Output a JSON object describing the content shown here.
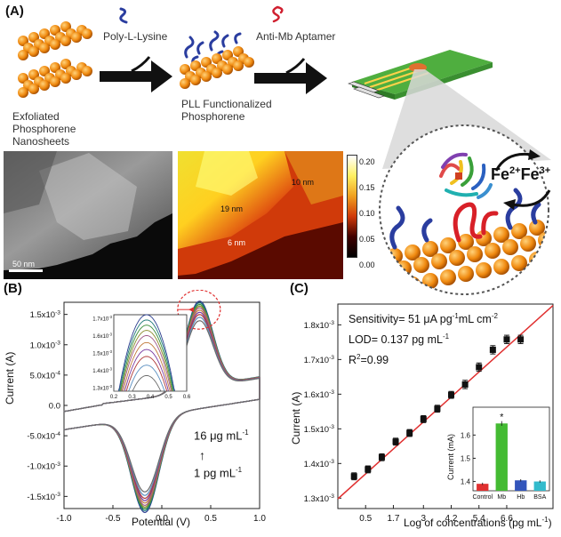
{
  "panelA": {
    "label": "(A)",
    "step1_label": "Poly-L-Lysine",
    "step2_label": "Anti-Mb Aptamer",
    "nanosheet_caption": [
      "Exfoliated",
      "Phosphorene",
      "Nanosheets"
    ],
    "pll_caption": [
      "PLL Functionalized",
      "Phosphorene"
    ],
    "sem_scale": "50 nm",
    "afm_heights": [
      "10 nm",
      "19 nm",
      "6 nm"
    ],
    "afm_colorbar_ticks": [
      "0.20",
      "0.15",
      "0.10",
      "0.05",
      "0.00"
    ],
    "redox_fe2": "Fe",
    "redox_fe2_sup": "2+",
    "redox_fe3_sup": "3+"
  },
  "panelB": {
    "label": "(B)",
    "ylabel": "Current (A)",
    "xlabel": "Potential (V)",
    "annot_high_a": "16 μg mL",
    "annot_high_sup": "-1",
    "annot_low_a": "1 pg mL",
    "annot_low_sup": "-1"
  },
  "panelC": {
    "label": "(C)",
    "ylabel": "Current (A)",
    "xlabel_a": "Log of concentrations (pg mL",
    "xlabel_sup": "-1",
    "xlabel_b": ")",
    "sens_a": "Sensitivity= 51 μA pg",
    "sens_sup1": "-1",
    "sens_b": "mL cm",
    "sens_sup2": "-2",
    "lod_a": "LOD= 0.137 pg mL",
    "lod_sup": "-1",
    "r2": "R",
    "r2_sup": "2",
    "r2_b": "=0.99",
    "inset_ylabel": "Current (mA)",
    "inset_star": "*"
  },
  "chart_data": [
    {
      "type": "line",
      "panel": "B",
      "xlabel": "Potential (V)",
      "ylabel": "Current (A)",
      "xlim": [
        -1.0,
        1.0
      ],
      "ylim": [
        -0.0017,
        0.0017
      ],
      "x_ticks": [
        "-1.0",
        "-0.5",
        "0.0",
        "0.5",
        "1.0"
      ],
      "y_ticks": [
        "1.5x10",
        "1.0x10",
        "5.0x10",
        "0.0",
        "-5.0x10",
        "-1.0x10",
        "-1.5x10"
      ],
      "y_tick_exps": [
        "-3",
        "-3",
        "-4",
        "",
        "-4",
        "-3",
        "-3"
      ],
      "y_tick_values": [
        0.0015,
        0.001,
        0.0005,
        0,
        -0.0005,
        -0.001,
        -0.0015
      ],
      "series_count": 10,
      "oxidation_peak_potential": 0.38,
      "reduction_peak_potential": -0.17,
      "peak_currents": [
        0.00172,
        0.00169,
        0.00166,
        0.00163,
        0.0016,
        0.00156,
        0.00152,
        0.00148,
        0.00143,
        0.00137
      ],
      "colors": [
        "#2a3d8f",
        "#1f7a7a",
        "#3a8f3a",
        "#8a8a2a",
        "#a05a8a",
        "#c07a3a",
        "#7a3aa0",
        "#b03a3a",
        "#5a8fc0",
        "#6a6a6a"
      ],
      "inset": {
        "xlim": [
          0.2,
          0.6
        ],
        "ylim": [
          0.00128,
          0.00172
        ],
        "x_ticks": [
          "0.2",
          "0.3",
          "0.4",
          "0.5",
          "0.6"
        ],
        "y_ticks": [
          "1.7x10",
          "1.6x10",
          "1.5x10",
          "1.4x10",
          "1.3x10"
        ],
        "y_tick_exps": [
          "-3",
          "-3",
          "-3",
          "-3",
          "-3"
        ],
        "y_tick_values": [
          0.0017,
          0.0016,
          0.0015,
          0.0014,
          0.0013
        ]
      }
    },
    {
      "type": "scatter",
      "panel": "C",
      "xlabel": "Log of concentrations (pg mL-1)",
      "ylabel": "Current (A)",
      "xlim": [
        -0.7,
        8.6
      ],
      "ylim": [
        0.00127,
        0.00186
      ],
      "x_ticks": [
        "0.5",
        "1.7",
        "3",
        "4.2",
        "5.4",
        "6.6"
      ],
      "x_tick_values": [
        0.5,
        1.7,
        3.0,
        4.2,
        5.4,
        6.6
      ],
      "y_ticks": [
        "1.8x10",
        "1.7x10",
        "1.6x10",
        "1.5x10",
        "1.4x10",
        "1.3x10"
      ],
      "y_tick_exps": [
        "-3",
        "-3",
        "-3",
        "-3",
        "-3",
        "-3"
      ],
      "y_tick_values": [
        0.0018,
        0.0017,
        0.0016,
        0.0015,
        0.0014,
        0.0013
      ],
      "x": [
        0.0,
        0.6,
        1.2,
        1.8,
        2.4,
        3.0,
        3.6,
        4.2,
        4.8,
        5.4,
        6.0,
        6.6,
        7.2
      ],
      "y": [
        0.001363,
        0.001383,
        0.001418,
        0.001463,
        0.001488,
        0.001528,
        0.001558,
        0.001598,
        0.001628,
        0.001678,
        0.001728,
        0.001758,
        0.001758
      ],
      "err": [
        1e-05,
        1e-05,
        1e-05,
        1e-05,
        1e-05,
        1e-05,
        1e-05,
        1e-05,
        1.2e-05,
        1.2e-05,
        1.2e-05,
        1.2e-05,
        1.2e-05
      ],
      "fit": {
        "slope": 6e-05,
        "intercept": 0.00134
      },
      "marker_color": "#111111",
      "fit_color": "#e03030",
      "inset": {
        "type": "bar",
        "categories": [
          "Control",
          "Mb",
          "Hb",
          "BSA"
        ],
        "values": [
          1.39,
          1.65,
          1.405,
          1.4
        ],
        "errors": [
          0.005,
          0.01,
          0.005,
          0.005
        ],
        "colors": [
          "#e03030",
          "#44bb33",
          "#3355bb",
          "#33bbcc"
        ],
        "ylabel": "Current (mA)",
        "ylim": [
          1.36,
          1.72
        ],
        "y_ticks": [
          "1.4",
          "1.5",
          "1.6"
        ],
        "y_tick_values": [
          1.4,
          1.5,
          1.6
        ]
      }
    }
  ]
}
